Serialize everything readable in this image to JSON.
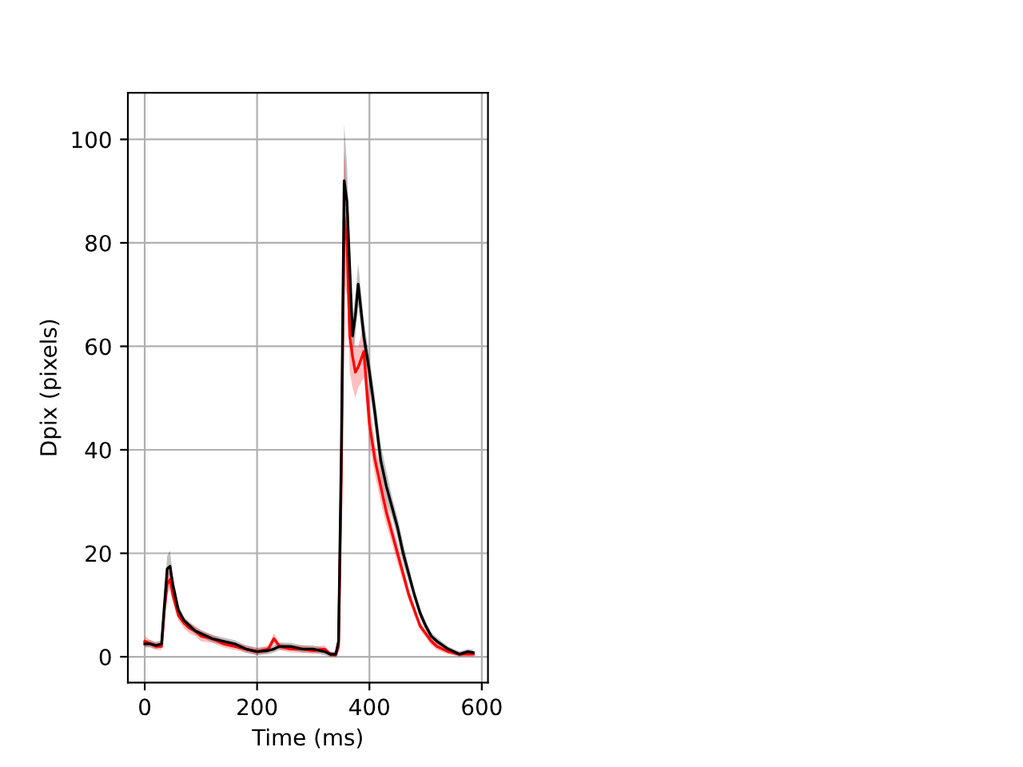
{
  "chart_data": {
    "type": "line",
    "xlabel": "Time (ms)",
    "ylabel": "Dpix (pixels)",
    "x": [
      0,
      10,
      20,
      30,
      35,
      40,
      45,
      50,
      60,
      70,
      80,
      90,
      100,
      120,
      140,
      160,
      180,
      200,
      220,
      230,
      240,
      260,
      280,
      300,
      320,
      330,
      340,
      345,
      350,
      355,
      360,
      365,
      370,
      375,
      380,
      390,
      400,
      410,
      420,
      430,
      440,
      450,
      460,
      470,
      480,
      490,
      500,
      510,
      520,
      540,
      560,
      575,
      585
    ],
    "series": [
      {
        "color": "#000000",
        "values": [
          2.5,
          2.5,
          2.2,
          2.5,
          10,
          17,
          17.5,
          14,
          9,
          7,
          6,
          5,
          4.5,
          3.5,
          3,
          2.5,
          1.5,
          1,
          1.2,
          1.5,
          2,
          2,
          1.5,
          1.5,
          1,
          0.5,
          0.5,
          3,
          40,
          92,
          88,
          75,
          62,
          66,
          72,
          62,
          55,
          47,
          38,
          33,
          29,
          25,
          20,
          16,
          12,
          8.5,
          6,
          4,
          3,
          1.5,
          0.5,
          1,
          0.8
        ],
        "lower": [
          1.8,
          1.8,
          1.5,
          1.8,
          8,
          15,
          15.5,
          12.5,
          8,
          6.3,
          5.3,
          4.3,
          3.8,
          2.8,
          2.3,
          1.8,
          0.8,
          0.3,
          0.5,
          0.8,
          1.3,
          1.3,
          0.8,
          0.8,
          0.3,
          0,
          0,
          1.5,
          32,
          84,
          82,
          70,
          59,
          62,
          68,
          59,
          52,
          44,
          35,
          30,
          27,
          23,
          18,
          14.5,
          11,
          7.5,
          5.2,
          3.3,
          2.3,
          1,
          0,
          0.5,
          0.3
        ],
        "upper": [
          3.2,
          3.2,
          2.9,
          3.2,
          12,
          19.5,
          20.5,
          15.5,
          10,
          7.7,
          6.7,
          5.7,
          5.2,
          4.2,
          3.7,
          3.2,
          2.2,
          1.7,
          1.9,
          2.2,
          2.7,
          2.7,
          2.2,
          2.2,
          1.7,
          1,
          1,
          4.5,
          48,
          103,
          95,
          80,
          65,
          70,
          76,
          65,
          58,
          50,
          41,
          36,
          31,
          27,
          22,
          17.5,
          13,
          9.5,
          6.8,
          4.7,
          3.7,
          2,
          1,
          1.5,
          1.3
        ]
      },
      {
        "color": "#ff0000",
        "values": [
          3,
          2.5,
          2,
          2,
          9,
          14,
          15,
          12,
          8,
          6.5,
          5.5,
          5,
          4,
          3.5,
          2.5,
          2,
          1.5,
          1,
          1.5,
          3.5,
          2,
          1.5,
          1.5,
          1.2,
          1.5,
          0.5,
          0.3,
          2,
          35,
          85,
          80,
          62,
          58,
          55,
          56,
          59,
          45,
          38,
          33,
          28,
          24,
          20,
          16,
          12,
          9,
          6,
          4.5,
          3,
          2,
          1,
          0.5,
          0.5,
          0.5
        ],
        "lower": [
          2,
          1.8,
          1.3,
          1.3,
          7,
          12,
          13,
          10.5,
          7,
          5.5,
          4.5,
          4,
          3,
          2.7,
          1.8,
          1.3,
          0.8,
          0.3,
          0.8,
          2.5,
          1.3,
          0.8,
          0.8,
          0.5,
          0.8,
          0,
          0,
          1,
          28,
          72,
          70,
          55,
          52,
          50,
          52,
          54,
          41,
          35,
          30,
          25.5,
          22,
          18,
          14.5,
          10.8,
          8,
          5.2,
          3.8,
          2.3,
          1.3,
          0.5,
          0,
          0,
          0
        ],
        "upper": [
          4,
          3.2,
          2.7,
          2.7,
          11,
          16,
          17,
          13.5,
          9,
          7.5,
          6.5,
          6,
          5,
          4.3,
          3.2,
          2.7,
          2.2,
          1.7,
          2.2,
          4.5,
          2.7,
          2.2,
          2.2,
          1.9,
          2.2,
          1,
          0.6,
          3,
          42,
          98,
          90,
          69,
          64,
          60,
          60,
          64,
          49,
          41,
          36,
          30.5,
          26,
          22,
          17.5,
          13.2,
          10,
          6.8,
          5.2,
          3.7,
          2.7,
          1.5,
          1,
          1,
          1
        ]
      }
    ],
    "xlim": [
      -30,
      611
    ],
    "ylim": [
      -5,
      109
    ],
    "xticks": [
      0,
      200,
      400,
      600
    ],
    "yticks": [
      0,
      20,
      40,
      60,
      80,
      100
    ],
    "grid": true
  }
}
